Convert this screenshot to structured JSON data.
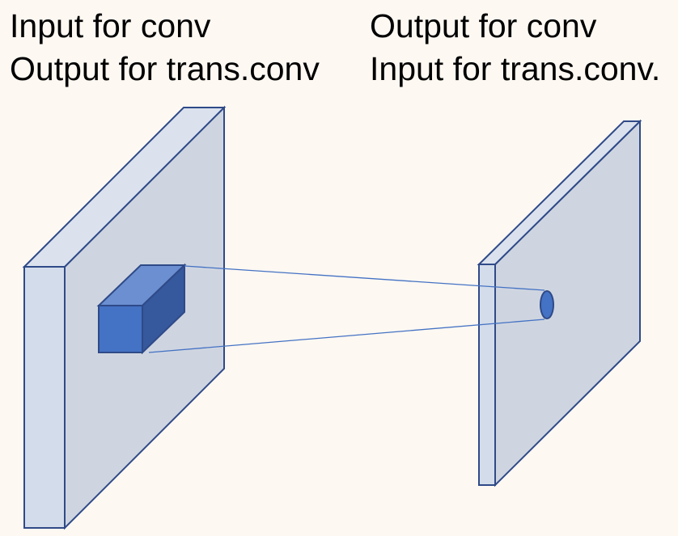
{
  "labels": {
    "left": {
      "line1": "Input for conv",
      "line2": "Output for trans.conv"
    },
    "right": {
      "line1": "Output for conv",
      "line2": "Input for trans.conv."
    }
  },
  "colors": {
    "background": "#fdf8f2",
    "plate_face": "#cfd5e0",
    "plate_side": "#d3dcea",
    "plate_top": "#dbe2ee",
    "plate_stroke": "#2f4a88",
    "kernel_front": "#4472c4",
    "kernel_top": "#6b8fd0",
    "kernel_side": "#36589d",
    "connector": "#4472c4",
    "output_dot": "#4472c4"
  }
}
